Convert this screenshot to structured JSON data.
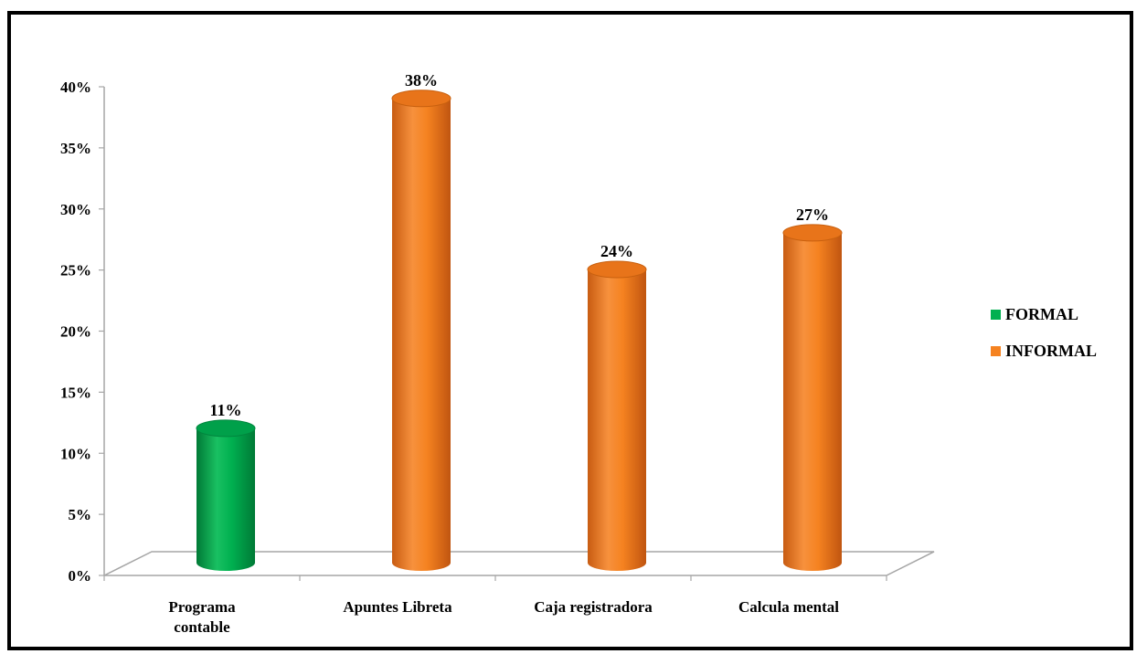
{
  "chart_data": {
    "type": "bar",
    "categories": [
      "Programa contable",
      "Apuntes Libreta",
      "Caja registradora",
      "Calcula mental"
    ],
    "values": [
      11,
      38,
      24,
      27
    ],
    "data_labels": [
      "11%",
      "38%",
      "24%",
      "27%"
    ],
    "bar_groups": [
      "FORMAL",
      "INFORMAL",
      "INFORMAL",
      "INFORMAL"
    ],
    "legend": [
      {
        "name": "FORMAL",
        "color": "#00b050"
      },
      {
        "name": "INFORMAL",
        "color": "#f58220"
      }
    ],
    "legend_position": "right",
    "ylim": [
      0,
      40
    ],
    "yticks": [
      "0%",
      "5%",
      "10%",
      "15%",
      "20%",
      "25%",
      "30%",
      "35%",
      "40%"
    ],
    "ytick_values": [
      0,
      5,
      10,
      15,
      20,
      25,
      30,
      35,
      40
    ],
    "title": "",
    "xlabel": "",
    "ylabel": "",
    "grid": false,
    "style": "3d-cylinder"
  }
}
